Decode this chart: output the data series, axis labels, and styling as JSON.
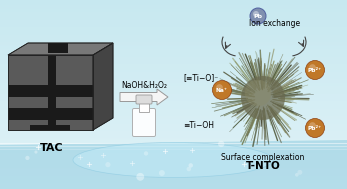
{
  "bg_color": "#c5e8f0",
  "water_color_top": "#a8d8e8",
  "water_color_mid": "#b8e0ee",
  "tac_label": "TAC",
  "tnto_label": "T-NTO",
  "arrow_label": "NaOH&H₂O₂",
  "ion_exchange_label": "Ion exchange",
  "surface_complexation_label": "Surface complexation",
  "ti_o_label": "[≡Ti−O]⁻",
  "ti_oh_label": "≡Ti−OH",
  "na_label": "Na⁺",
  "pb_top_label": "Pb",
  "pb_right_top_label": "Pb²⁺",
  "pb_right_bot_label": "Pb²⁺",
  "tac_front": "#5a5a5a",
  "tac_top": "#787878",
  "tac_side": "#444444",
  "tac_dark": "#1a1a1a",
  "pb_ball_color": "#8090b0",
  "badge_color": "#c07828",
  "arrow_fill": "#f5f5f5",
  "arrow_edge": "#999999",
  "spike_color_dark": "#585840",
  "spike_color_mid": "#707055",
  "spike_color_light": "#909070"
}
